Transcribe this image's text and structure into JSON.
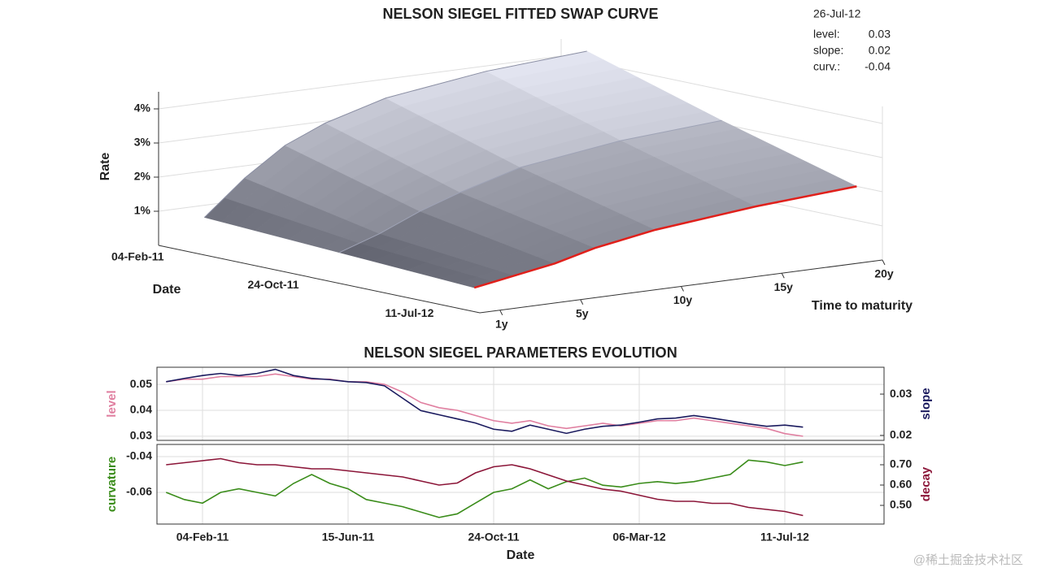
{
  "chart_data": [
    {
      "type": "surface",
      "title": "NELSON SIEGEL FITTED SWAP CURVE",
      "zlabel": "Rate",
      "ylabel": "Date",
      "xlabel": "Time to maturity",
      "x": [
        1,
        2,
        3,
        5,
        7,
        10,
        15,
        20
      ],
      "xlim": [
        0,
        20
      ],
      "xticks": [
        {
          "value": 1,
          "label": "1y"
        },
        {
          "value": 5,
          "label": "5y"
        },
        {
          "value": 10,
          "label": "10y"
        },
        {
          "value": 15,
          "label": "15y"
        },
        {
          "value": 20,
          "label": "20y"
        }
      ],
      "zlim": [
        0,
        4.5
      ],
      "zticks": [
        {
          "value": 1,
          "label": "1%"
        },
        {
          "value": 2,
          "label": "2%"
        },
        {
          "value": 3,
          "label": "3%"
        },
        {
          "value": 4,
          "label": "4%"
        }
      ],
      "series": [
        {
          "name": "04-Feb-11",
          "color": "#8a8ea3",
          "values": [
            0.9,
            1.4,
            1.9,
            2.7,
            3.2,
            3.7,
            4.1,
            4.3
          ]
        },
        {
          "name": "24-Oct-11",
          "color": "#9fa3b6",
          "values": [
            0.7,
            0.9,
            1.1,
            1.6,
            2.0,
            2.5,
            2.9,
            3.1
          ]
        },
        {
          "name": "11-Jul-12",
          "color": "#e0201b",
          "values": [
            0.5,
            0.6,
            0.7,
            0.9,
            1.2,
            1.5,
            1.8,
            2.0
          ]
        }
      ],
      "annotation": {
        "date": "26-Jul-12",
        "labels": [
          "level:",
          "slope:",
          "curv.:"
        ],
        "values": [
          0.03,
          0.02,
          -0.04
        ]
      }
    },
    {
      "type": "line",
      "title": "NELSON SIEGEL PARAMETERS EVOLUTION",
      "x": [
        null,
        null,
        "04-Feb-11",
        null,
        null,
        null,
        null,
        null,
        null,
        null,
        "15-Jun-11",
        null,
        null,
        null,
        null,
        null,
        null,
        null,
        "24-Oct-11",
        null,
        null,
        null,
        null,
        null,
        null,
        null,
        "06-Mar-12",
        null,
        null,
        null,
        null,
        null,
        null,
        null,
        "11-Jul-12",
        null
      ],
      "ylim": [
        0.0284,
        0.0566
      ],
      "yticks": [
        0.03,
        0.04,
        0.05
      ],
      "y2lim": [
        0.0188,
        0.0365
      ],
      "y2ticks": [
        0.02,
        0.03
      ],
      "grid": true,
      "series": [
        {
          "name": "level",
          "color": "#e07fa0",
          "values": [
            0.051,
            0.052,
            0.052,
            0.053,
            0.053,
            0.053,
            0.054,
            0.053,
            0.052,
            0.052,
            0.051,
            0.051,
            0.05,
            0.047,
            0.043,
            0.041,
            0.04,
            0.038,
            0.036,
            0.035,
            0.036,
            0.034,
            0.033,
            0.034,
            0.035,
            0.034,
            0.035,
            0.036,
            0.036,
            0.037,
            0.036,
            0.035,
            0.034,
            0.033,
            0.031,
            0.03
          ]
        },
        {
          "name": "slope",
          "color": "#1a1a5e",
          "axis": "y2",
          "values": [
            0.033,
            0.0338,
            0.0345,
            0.035,
            0.0345,
            0.035,
            0.036,
            0.0345,
            0.0338,
            0.0335,
            0.033,
            0.0328,
            0.032,
            0.029,
            0.026,
            0.025,
            0.024,
            0.023,
            0.0215,
            0.021,
            0.0225,
            0.0215,
            0.0205,
            0.0215,
            0.0222,
            0.0225,
            0.0232,
            0.024,
            0.0242,
            0.0248,
            0.0242,
            0.0235,
            0.0228,
            0.0222,
            0.0225,
            0.022
          ]
        }
      ]
    },
    {
      "type": "line",
      "xlabel": "Date",
      "x": [
        null,
        null,
        "04-Feb-11",
        null,
        null,
        null,
        null,
        null,
        null,
        null,
        "15-Jun-11",
        null,
        null,
        null,
        null,
        null,
        null,
        null,
        "24-Oct-11",
        null,
        null,
        null,
        null,
        null,
        null,
        null,
        "06-Mar-12",
        null,
        null,
        null,
        null,
        null,
        null,
        null,
        "11-Jul-12",
        null
      ],
      "ylim": [
        -0.0777,
        -0.0332
      ],
      "yticks": [
        -0.06,
        -0.04
      ],
      "y2lim": [
        0.408,
        0.8
      ],
      "y2ticks": [
        {
          "value": 0.5,
          "label": "0.50"
        },
        {
          "value": 0.6,
          "label": "0.60"
        },
        {
          "value": 0.7,
          "label": "0.70"
        }
      ],
      "grid": true,
      "series": [
        {
          "name": "curvature",
          "color": "#3a8c1a",
          "values": [
            -0.06,
            -0.064,
            -0.066,
            -0.06,
            -0.058,
            -0.06,
            -0.062,
            -0.055,
            -0.05,
            -0.055,
            -0.058,
            -0.064,
            -0.066,
            -0.068,
            -0.071,
            -0.074,
            -0.072,
            -0.066,
            -0.06,
            -0.058,
            -0.053,
            -0.058,
            -0.054,
            -0.052,
            -0.056,
            -0.057,
            -0.055,
            -0.054,
            -0.055,
            -0.054,
            -0.052,
            -0.05,
            -0.042,
            -0.043,
            -0.045,
            -0.043
          ]
        },
        {
          "name": "decay",
          "color": "#8b1538",
          "axis": "y2",
          "values": [
            0.7,
            0.71,
            0.72,
            0.73,
            0.71,
            0.7,
            0.7,
            0.69,
            0.68,
            0.68,
            0.67,
            0.66,
            0.65,
            0.64,
            0.62,
            0.6,
            0.61,
            0.66,
            0.69,
            0.7,
            0.68,
            0.65,
            0.62,
            0.6,
            0.58,
            0.57,
            0.55,
            0.53,
            0.52,
            0.52,
            0.51,
            0.51,
            0.49,
            0.48,
            0.47,
            0.45
          ]
        }
      ]
    }
  ],
  "watermark": "@稀土掘金技术社区"
}
